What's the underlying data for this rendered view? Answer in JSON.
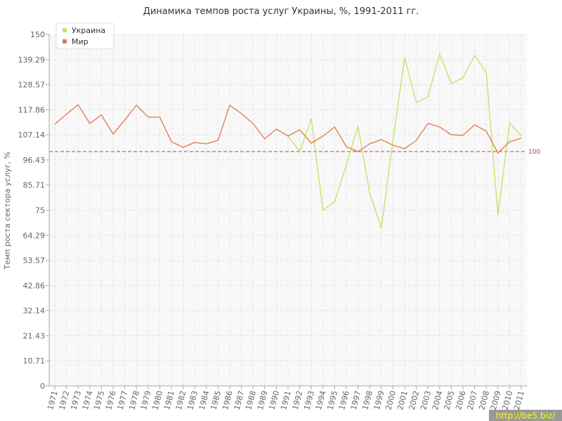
{
  "chart_data": {
    "type": "line",
    "title": "Динамика темпов роста услуг Украины, %, 1991-2011 гг.",
    "y_label": "Темп роста сектора услуг, %",
    "categories": [
      "1971",
      "1972",
      "1973",
      "1974",
      "1975",
      "1976",
      "1977",
      "1978",
      "1979",
      "1980",
      "1981",
      "1982",
      "1983",
      "1984",
      "1985",
      "1986",
      "1987",
      "1988",
      "1989",
      "1990",
      "1991",
      "1992",
      "1993",
      "1994",
      "1995",
      "1996",
      "1997",
      "1998",
      "1999",
      "2000",
      "2001",
      "2002",
      "2003",
      "2004",
      "2005",
      "2006",
      "2007",
      "2008",
      "2009",
      "2010",
      "2011"
    ],
    "series": [
      {
        "name": "Украина",
        "color": "#c5e063",
        "values": [
          null,
          null,
          null,
          null,
          null,
          null,
          null,
          null,
          null,
          null,
          null,
          null,
          null,
          null,
          null,
          null,
          null,
          null,
          null,
          null,
          106.6,
          100,
          114,
          74.9,
          78.7,
          94.3,
          110.8,
          82.3,
          67.4,
          104.8,
          140.1,
          121,
          123.4,
          141.6,
          129,
          131.4,
          141,
          133.8,
          72.8,
          112.3,
          106.6
        ]
      },
      {
        "name": "Мир",
        "color": "#e0784a",
        "values": [
          111.7,
          115.9,
          120,
          112,
          115.6,
          107.5,
          113.5,
          119.8,
          114.7,
          114.7,
          104.2,
          101.8,
          103.9,
          103.3,
          104.8,
          119.8,
          116.2,
          112,
          105.4,
          109.6,
          106.6,
          109.3,
          103.6,
          106.6,
          110.5,
          102.1,
          100,
          103.3,
          105.1,
          102.7,
          101.2,
          104.8,
          112,
          110.5,
          107.2,
          106.9,
          111.4,
          108.7,
          99.4,
          104.2,
          105.7
        ]
      }
    ],
    "reference_line": 100,
    "ylim": [
      0,
      150
    ],
    "yticks": [
      0,
      10.71,
      21.43,
      32.14,
      42.86,
      53.57,
      64.29,
      75,
      85.71,
      96.43,
      107.14,
      117.86,
      128.57,
      139.29,
      150
    ],
    "grid": true,
    "legend": "top-left",
    "watermark": "http://be5.biz/"
  }
}
